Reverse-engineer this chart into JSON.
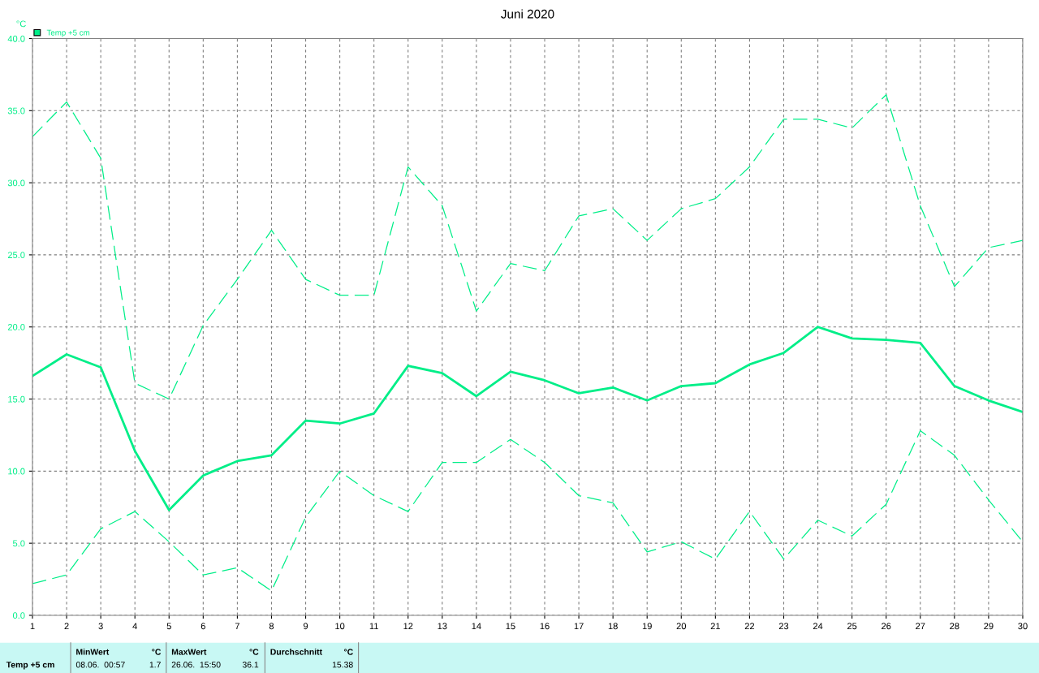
{
  "chart_data": {
    "type": "line",
    "title": "Juni 2020",
    "ylabel": "°C",
    "x": [
      1,
      2,
      3,
      4,
      5,
      6,
      7,
      8,
      9,
      10,
      11,
      12,
      13,
      14,
      15,
      16,
      17,
      18,
      19,
      20,
      21,
      22,
      23,
      24,
      25,
      26,
      27,
      28,
      29,
      30
    ],
    "series": [
      {
        "name": "Temp +5 cm",
        "color": "#00ee88",
        "line_style": "solid",
        "values": [
          16.6,
          18.1,
          17.2,
          11.4,
          7.3,
          9.7,
          10.7,
          11.1,
          13.5,
          13.3,
          14.0,
          17.3,
          16.8,
          15.2,
          16.9,
          16.3,
          15.4,
          15.8,
          14.9,
          15.9,
          16.1,
          17.4,
          18.2,
          20.0,
          19.2,
          19.1,
          18.9,
          15.9,
          14.9,
          14.1
        ]
      },
      {
        "color": "#00ee88",
        "line_style": "dashed",
        "values": [
          33.2,
          35.6,
          31.7,
          16.1,
          15.0,
          20.1,
          23.3,
          26.7,
          23.3,
          22.2,
          22.2,
          31.1,
          28.4,
          21.1,
          24.4,
          23.9,
          27.7,
          28.2,
          26.0,
          28.2,
          28.9,
          31.1,
          34.4,
          34.4,
          33.8,
          36.1,
          28.4,
          22.8,
          25.5,
          26.0
        ]
      },
      {
        "color": "#00ee88",
        "line_style": "dashed",
        "values": [
          2.2,
          2.8,
          6.0,
          7.2,
          5.1,
          2.8,
          3.3,
          1.7,
          6.8,
          10.0,
          8.3,
          7.2,
          10.6,
          10.6,
          12.2,
          10.6,
          8.3,
          7.8,
          4.4,
          5.1,
          3.9,
          7.2,
          3.9,
          6.6,
          5.5,
          7.7,
          12.8,
          11.1,
          8.0,
          5.1
        ]
      }
    ],
    "xlim": [
      1,
      30
    ],
    "xticks": [
      1,
      2,
      3,
      4,
      5,
      6,
      7,
      8,
      9,
      10,
      11,
      12,
      13,
      14,
      15,
      16,
      17,
      18,
      19,
      20,
      21,
      22,
      23,
      24,
      25,
      26,
      27,
      28,
      29,
      30
    ],
    "ylim": [
      0,
      40
    ],
    "yticks": [
      {
        "value": 0,
        "label": "0.0"
      },
      {
        "value": 5,
        "label": "5.0"
      },
      {
        "value": 10,
        "label": "10.0"
      },
      {
        "value": 15,
        "label": "15.0"
      },
      {
        "value": 20,
        "label": "20.0"
      },
      {
        "value": 25,
        "label": "25.0"
      },
      {
        "value": 30,
        "label": "30.0"
      },
      {
        "value": 35,
        "label": "35.0"
      },
      {
        "value": 40,
        "label": "40.0"
      }
    ],
    "grid": true,
    "legend": "top left",
    "annotations": [
      "Temp +5 cm",
      "MinWert",
      "°C",
      "08.06.  00:57",
      "1.7",
      "MaxWert",
      "°C",
      "26.06.  15:50",
      "36.1",
      "Durchschnitt",
      "°C",
      "15.38"
    ]
  }
}
